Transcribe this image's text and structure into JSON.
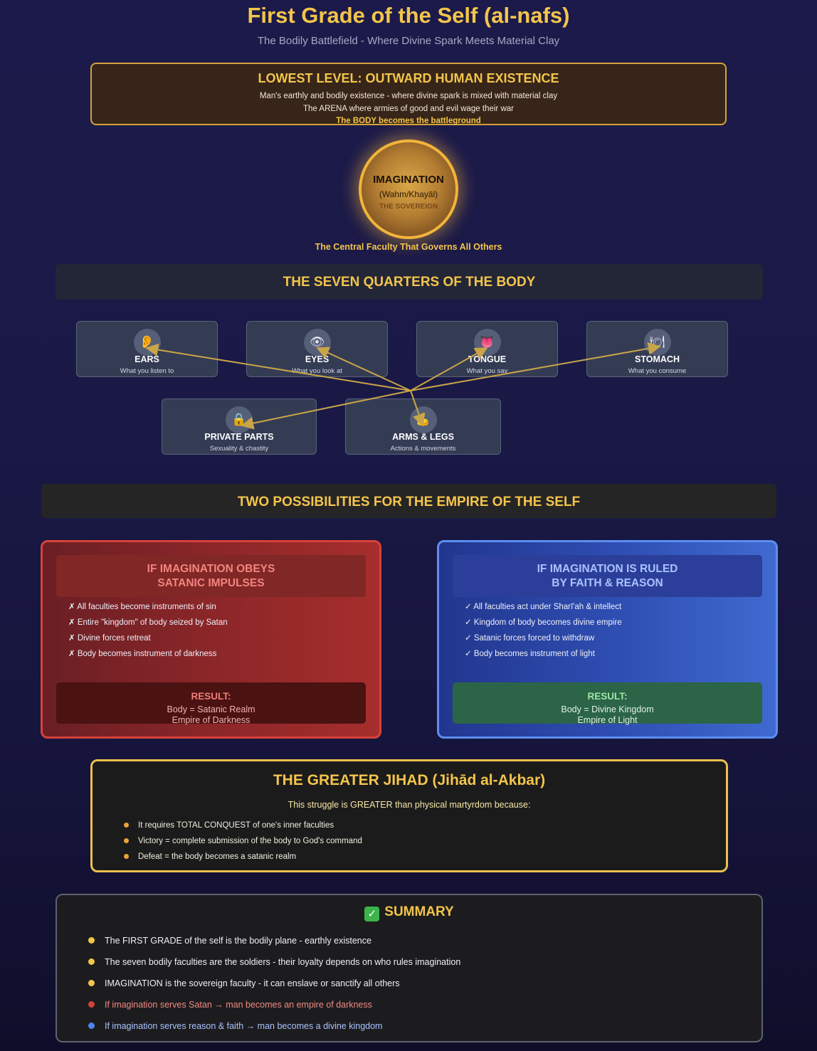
{
  "header": {
    "title": "First Grade of the Self (al-nafs)",
    "subtitle": "The Bodily Battlefield - Where Divine Spark Meets Material Clay"
  },
  "lowest_level": {
    "heading": "LOWEST LEVEL: OUTWARD HUMAN EXISTENCE",
    "line1": "Man's earthly and bodily existence - where divine spark is mixed with material clay",
    "line2": "The ARENA where armies of good and evil wage their war",
    "line3": "The BODY becomes the battleground"
  },
  "imagination": {
    "name": "IMAGINATION",
    "arabic": "(Wahm/Khayāl)",
    "role": "THE SOVEREIGN",
    "caption": "The Central Faculty That Governs All Others"
  },
  "quarters_heading": "THE SEVEN QUARTERS OF THE BODY",
  "quarters": [
    {
      "name": "EARS",
      "desc": "What you listen to",
      "icon": "ear-icon",
      "glyph": "👂"
    },
    {
      "name": "EYES",
      "desc": "What you look at",
      "icon": "eye-icon",
      "glyph": "👁"
    },
    {
      "name": "TONGUE",
      "desc": "What you say",
      "icon": "tongue-icon",
      "glyph": "👅"
    },
    {
      "name": "STOMACH",
      "desc": "What you consume",
      "icon": "plate-icon",
      "glyph": "🍽"
    },
    {
      "name": "PRIVATE PARTS",
      "desc": "Sexuality & chastity",
      "icon": "lock-icon",
      "glyph": "🔒"
    },
    {
      "name": "ARMS & LEGS",
      "desc": "Actions & movements",
      "icon": "flexed-arm-icon",
      "glyph": "💪"
    }
  ],
  "possibilities_heading": "TWO POSSIBILITIES FOR THE EMPIRE OF THE SELF",
  "satanic": {
    "heading1": "IF IMAGINATION OBEYS",
    "heading2": "SATANIC IMPULSES",
    "items": [
      "✗ All faculties become instruments of sin",
      "✗ Entire \"kingdom\" of body seized by Satan",
      "✗ Divine forces retreat",
      "✗ Body becomes instrument of darkness"
    ],
    "result_label": "RESULT:",
    "result1": "Body = Satanic Realm",
    "result2": "Empire of Darkness"
  },
  "faithful": {
    "heading1": "IF IMAGINATION IS RULED",
    "heading2": "BY FAITH & REASON",
    "items": [
      "✓ All faculties act under Sharī'ah & intellect",
      "✓ Kingdom of body becomes divine empire",
      "✓ Satanic forces forced to withdraw",
      "✓ Body becomes instrument of light"
    ],
    "result_label": "RESULT:",
    "result1": "Body = Divine Kingdom",
    "result2": "Empire of Light"
  },
  "jihad": {
    "heading": "THE GREATER JIHAD (Jihād al-Akbar)",
    "intro": "This struggle is GREATER than physical martyrdom because:",
    "items": [
      "It requires TOTAL CONQUEST of one's inner faculties",
      "Victory = complete submission of the body to God's command",
      "Defeat = the body becomes a satanic realm"
    ]
  },
  "summary": {
    "heading": "SUMMARY",
    "items": [
      {
        "text": "The FIRST GRADE of the self is the bodily plane - earthly existence",
        "color": "#f3c54b",
        "text_color": "#f1f0f4"
      },
      {
        "text": "The seven bodily faculties are the soldiers - their loyalty depends on who rules imagination",
        "color": "#f3c54b",
        "text_color": "#f1f0f4"
      },
      {
        "text": "IMAGINATION is the sovereign faculty - it can enslave or sanctify all others",
        "color": "#f3c54b",
        "text_color": "#f1f0f4"
      },
      {
        "text": "If imagination serves Satan → man becomes an empire of darkness",
        "color": "#d8413a",
        "text_color": "#f08a84"
      },
      {
        "text": "If imagination serves reason & faith → man becomes a divine kingdom",
        "color": "#4a86f0",
        "text_color": "#a9c2ff"
      }
    ]
  },
  "colors": {
    "accent_gold": "#f3c54b",
    "arrow": "#c9a548",
    "satanic_red": "#d8413a",
    "faith_blue": "#5c8ef0",
    "result_green": "#2c6447"
  }
}
